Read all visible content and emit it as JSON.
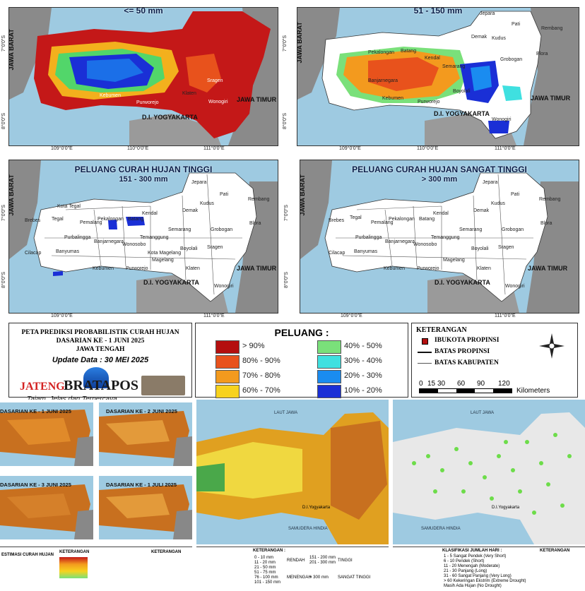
{
  "top_left": {
    "title": "<= 50 mm",
    "region_west": "JAWA BARAT",
    "region_east": "JAWA TIMUR",
    "yogya": "D.I. YOGYAKARTA",
    "cities": [
      "Kebumen",
      "Purworejo",
      "Klaten",
      "Wonogiri",
      "Sragen"
    ]
  },
  "top_right": {
    "title": "51 - 150 mm",
    "region_west": "JAWA BARAT",
    "region_east": "JAWA TIMUR",
    "yogya": "D.I. YOGYAKARTA",
    "cities": [
      "Jepara",
      "Pati",
      "Rembang",
      "Demak",
      "Kudus",
      "Grobogan",
      "Blora",
      "Pekalongan",
      "Batang",
      "Kendal",
      "Semarang",
      "Boyolali",
      "Banjarnegara",
      "Kebumen",
      "Purworejo",
      "Wonogiri"
    ]
  },
  "mid_left": {
    "title": "PELUANG CURAH HUJAN TINGGI",
    "subtitle": "151 - 300 mm",
    "region_west": "JAWA BARAT",
    "region_east": "JAWA TIMUR",
    "yogya": "D.I. YOGYAKARTA",
    "cities": [
      "Jepara",
      "Pati",
      "Rembang",
      "Kudus",
      "Demak",
      "Grobogan",
      "Blora",
      "Brebes",
      "Tegal",
      "Kota Tegal",
      "Pemalang",
      "Pekalongan",
      "Batang",
      "Kendal",
      "Semarang",
      "Purbalingga",
      "Banjarnegara",
      "Temanggung",
      "Wonosobo",
      "Boyolali",
      "Sragen",
      "Cilacap",
      "Banyumas",
      "Kebumen",
      "Purworejo",
      "Kota Magelang",
      "Magelang",
      "Klaten",
      "Wonogiri"
    ]
  },
  "mid_right": {
    "title": "PELUANG CURAH HUJAN SANGAT TINGGI",
    "subtitle": "> 300 mm",
    "region_west": "JAWA BARAT",
    "region_east": "JAWA TIMUR",
    "yogya": "D.I. YOGYAKARTA",
    "cities": [
      "Jepara",
      "Pati",
      "Rembang",
      "Kudus",
      "Demak",
      "Grobogan",
      "Blora",
      "Brebes",
      "Tegal",
      "Pemalang",
      "Pekalongan",
      "Batang",
      "Kendal",
      "Semarang",
      "Purbalingga",
      "Banjarnegara",
      "Temanggung",
      "Wonosobo",
      "Boyolali",
      "Sragen",
      "Cilacap",
      "Banyumas",
      "Kebumen",
      "Purworejo",
      "Magelang",
      "Klaten",
      "Wonogiri"
    ]
  },
  "coords": {
    "lon": [
      "109°0'0\"E",
      "110°0'0\"E",
      "111°0'0\"E"
    ],
    "lat": [
      "7°0'0\"S",
      "8°0'0\"S"
    ]
  },
  "info": {
    "line1": "PETA PREDIKSI PROBABILISTIK CURAH HUJAN",
    "line2": "DASARIAN KE - 1 JUNI 2025",
    "line3": "JAWA TENGAH",
    "update": "Update Data : 30 MEI 2025"
  },
  "legend": {
    "title": "PELUANG :",
    "items": [
      {
        "label": "> 90%",
        "color": "#b40f0f"
      },
      {
        "label": "80% - 90%",
        "color": "#e8521c"
      },
      {
        "label": "70% - 80%",
        "color": "#f39a1e"
      },
      {
        "label": "60% - 70%",
        "color": "#f7d21e"
      },
      {
        "label": "40% - 50%",
        "color": "#7ae07a"
      },
      {
        "label": "30% - 40%",
        "color": "#3fe0e0"
      },
      {
        "label": "20% - 30%",
        "color": "#1a8cf0"
      },
      {
        "label": "10% - 20%",
        "color": "#1a2fd6"
      }
    ]
  },
  "keterangan": {
    "title": "KETERANGAN",
    "items": [
      "IBUKOTA PROPINSI",
      "BATAS PROPINSI",
      "BATAS KABUPATEN"
    ],
    "scale": [
      "0",
      "15",
      "30",
      "60",
      "90",
      "120"
    ],
    "scale_unit": "Kilometers"
  },
  "watermark": {
    "brand1": "JATENG",
    "brand2": "BRATAPOS",
    "tagline": "Tajam, Jelas dan Terpercaya"
  },
  "bottom_left": {
    "titles": [
      "DASARIAN KE - 1 JUNI 2025",
      "DASARIAN KE - 2 JUNI 2025",
      "DASARIAN KE - 3 JUNI 2025",
      "DASARIAN KE - 1 JULI 2025"
    ],
    "footer1": "ESTIMASI CURAH HUJAN",
    "footer2": "KETERANGAN",
    "footer3": "KETERANGAN"
  },
  "bottom_mid": {
    "sea_north": "LAUT JAWA",
    "sea_south": "SAMUDERA HINDIA",
    "yogya": "D.I.Yogyakarta",
    "footer1": "KETERANGAN :",
    "ranges": [
      "0 - 10 mm",
      "11 - 20 mm",
      "21 - 50 mm",
      "51 - 75 mm",
      "76 - 100 mm",
      "101 - 150 mm",
      "151 - 200 mm",
      "201 - 300 mm",
      "> 300 mm"
    ],
    "classes": [
      "RENDAH",
      "MENENGAH",
      "TINGGI",
      "SANGAT TINGGI"
    ]
  },
  "bottom_right": {
    "sea_north": "LAUT JAWA",
    "sea_south": "SAMUDERA HINDIA",
    "yogya": "D.I.Yogyakarta",
    "footer1": "KLASIFIKASI JUMLAH HARI :",
    "classes": [
      "1 - 5 Sangat Pendek (Very Short)",
      "6 - 10 Pendek (Short)",
      "11 - 20 Menengah (Moderate)",
      "21 - 30 Panjang (Long)",
      "31 - 60 Sangat Panjang (Very Long)",
      "> 60 Kekeringan Ekstrim (Extreme Drought)",
      "Masih Ada Hujan (No Drought)"
    ],
    "keterangan": "KETERANGAN"
  }
}
